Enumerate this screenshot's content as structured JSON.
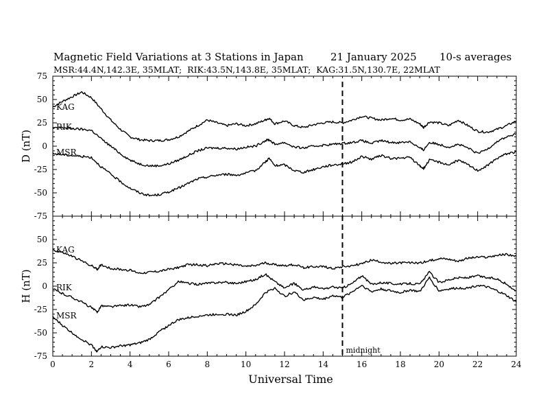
{
  "header": {
    "title": "Magnetic Field Variations at 3 Stations in Japan",
    "date": "21 January 2025",
    "averaging": "10-s averages",
    "stations_line": "MSR:44.4N,142.3E, 35MLAT;  RIK:43.5N,143.8E, 35MLAT;  KAG:31.5N,130.7E, 22MLAT"
  },
  "chart_data": [
    {
      "type": "line",
      "panel": "top",
      "ylabel": "D (nT)",
      "ylim": [
        -75,
        75
      ],
      "yticks": [
        75,
        50,
        25,
        0,
        -25,
        -50,
        -75
      ],
      "xlim": [
        0,
        24
      ],
      "grid": false,
      "series": [
        {
          "name": "KAG",
          "x": [
            0,
            0.5,
            1,
            1.5,
            2,
            2.5,
            3,
            3.5,
            4,
            4.5,
            5,
            5.5,
            6,
            6.5,
            7,
            7.5,
            8,
            8.5,
            9,
            9.5,
            10,
            10.5,
            11,
            11.2,
            11.5,
            12,
            12.5,
            13,
            13.5,
            14,
            14.5,
            15,
            15.5,
            16,
            16.5,
            17,
            17.5,
            18,
            18.5,
            19,
            19.2,
            19.5,
            20,
            20.5,
            21,
            21.5,
            22,
            22.5,
            23,
            23.5,
            24
          ],
          "y": [
            42,
            48,
            53,
            58,
            52,
            40,
            28,
            18,
            10,
            7,
            6,
            6,
            7,
            10,
            16,
            22,
            28,
            25,
            22,
            24,
            22,
            24,
            28,
            30,
            24,
            27,
            22,
            20,
            23,
            25,
            26,
            25,
            28,
            32,
            30,
            28,
            30,
            28,
            29,
            24,
            20,
            26,
            25,
            22,
            28,
            22,
            16,
            15,
            18,
            22,
            27
          ]
        },
        {
          "name": "RIK",
          "x": [
            0,
            0.5,
            1,
            1.5,
            2,
            2.5,
            3,
            3.5,
            4,
            4.5,
            5,
            5.5,
            6,
            6.5,
            7,
            7.5,
            8,
            8.5,
            9,
            9.5,
            10,
            10.5,
            11,
            11.2,
            11.5,
            12,
            12.5,
            13,
            13.5,
            14,
            14.5,
            15,
            15.5,
            16,
            16.5,
            17,
            17.5,
            18,
            18.5,
            19,
            19.2,
            19.5,
            20,
            20.5,
            21,
            21.5,
            22,
            22.5,
            23,
            23.5,
            24
          ],
          "y": [
            19,
            20,
            19,
            18,
            17,
            8,
            0,
            -8,
            -15,
            -19,
            -21,
            -21,
            -19,
            -15,
            -10,
            -5,
            -2,
            -2,
            -2,
            -3,
            -1,
            0,
            6,
            7,
            2,
            4,
            -1,
            -2,
            0,
            1,
            2,
            3,
            4,
            6,
            3,
            6,
            4,
            4,
            5,
            -2,
            -4,
            4,
            2,
            -1,
            2,
            -2,
            -8,
            -3,
            5,
            10,
            13
          ]
        },
        {
          "name": "MSR",
          "x": [
            0,
            0.5,
            1,
            1.5,
            2,
            2.5,
            3,
            3.5,
            4,
            4.5,
            5,
            5.5,
            6,
            6.5,
            7,
            7.5,
            8,
            8.5,
            9,
            9.5,
            10,
            10.5,
            11,
            11.2,
            11.5,
            12,
            12.5,
            13,
            13.5,
            14,
            14.5,
            15,
            15.5,
            16,
            16.5,
            17,
            17.5,
            18,
            18.5,
            19,
            19.2,
            19.5,
            20,
            20.5,
            21,
            21.5,
            22,
            22.5,
            23,
            23.5,
            24
          ],
          "y": [
            -8,
            -9,
            -10,
            -11,
            -12,
            -22,
            -30,
            -38,
            -45,
            -50,
            -53,
            -52,
            -49,
            -45,
            -40,
            -35,
            -33,
            -31,
            -30,
            -31,
            -29,
            -26,
            -17,
            -13,
            -21,
            -20,
            -26,
            -28,
            -25,
            -22,
            -20,
            -19,
            -17,
            -11,
            -14,
            -10,
            -13,
            -13,
            -12,
            -21,
            -24,
            -15,
            -17,
            -20,
            -15,
            -20,
            -26,
            -21,
            -13,
            -8,
            -6
          ]
        }
      ],
      "annotation": ""
    },
    {
      "type": "line",
      "panel": "bottom",
      "ylabel": "H (nT)",
      "ylim": [
        -75,
        75
      ],
      "yticks": [
        50,
        25,
        0,
        -25,
        -50,
        -75
      ],
      "xlim": [
        0,
        24
      ],
      "xticks": [
        0,
        2,
        4,
        6,
        8,
        10,
        12,
        14,
        16,
        18,
        20,
        22,
        24
      ],
      "xlabel": "Universal Time",
      "grid": false,
      "series": [
        {
          "name": "KAG",
          "x": [
            0,
            0.5,
            1,
            1.5,
            2,
            2.3,
            2.5,
            3,
            3.5,
            4,
            4.5,
            5,
            5.5,
            6,
            6.5,
            7,
            7.5,
            8,
            8.5,
            9,
            9.5,
            10,
            10.5,
            11,
            11.5,
            12,
            12.5,
            13,
            13.5,
            14,
            14.5,
            15,
            15.5,
            16,
            16.5,
            17,
            17.5,
            18,
            18.5,
            19,
            19.5,
            20,
            20.5,
            21,
            21.5,
            22,
            22.5,
            23,
            23.5,
            24
          ],
          "y": [
            39,
            36,
            32,
            27,
            22,
            18,
            23,
            19,
            18,
            17,
            14,
            15,
            16,
            18,
            20,
            23,
            23,
            22,
            24,
            24,
            23,
            21,
            22,
            25,
            23,
            22,
            23,
            20,
            21,
            21,
            19,
            21,
            22,
            24,
            28,
            26,
            24,
            25,
            25,
            25,
            27,
            30,
            29,
            27,
            30,
            31,
            31,
            33,
            34,
            32
          ]
        },
        {
          "name": "RIK",
          "x": [
            0,
            0.5,
            1,
            1.5,
            2,
            2.3,
            2.5,
            3,
            3.5,
            4,
            4.5,
            5,
            5.5,
            6,
            6.5,
            7,
            7.5,
            8,
            8.5,
            9,
            9.5,
            10,
            10.5,
            11,
            11.5,
            12,
            12.5,
            13,
            13.5,
            14,
            14.5,
            15,
            15.5,
            16,
            16.5,
            17,
            17.5,
            18,
            18.5,
            19,
            19.5,
            20,
            20.5,
            21,
            21.5,
            22,
            22.5,
            23,
            23.5,
            24
          ],
          "y": [
            -3,
            -8,
            -12,
            -17,
            -23,
            -28,
            -21,
            -22,
            -21,
            -20,
            -22,
            -20,
            -12,
            -4,
            5,
            3,
            2,
            3,
            4,
            4,
            3,
            5,
            7,
            13,
            5,
            -2,
            3,
            -4,
            -1,
            -3,
            -1,
            -2,
            3,
            11,
            2,
            4,
            3,
            2,
            3,
            2,
            15,
            4,
            7,
            9,
            9,
            11,
            9,
            8,
            2,
            -5
          ]
        },
        {
          "name": "MSR",
          "x": [
            0,
            0.5,
            1,
            1.5,
            2,
            2.3,
            2.5,
            3,
            3.5,
            4,
            4.5,
            5,
            5.5,
            6,
            6.5,
            7,
            7.5,
            8,
            8.5,
            9,
            9.5,
            10,
            10.5,
            11,
            11.5,
            12,
            12.5,
            13,
            13.5,
            14,
            14.5,
            15,
            15.5,
            16,
            16.5,
            17,
            17.5,
            18,
            18.5,
            19,
            19.5,
            20,
            20.5,
            21,
            21.5,
            22,
            22.5,
            23,
            23.5,
            24
          ],
          "y": [
            -33,
            -42,
            -50,
            -57,
            -63,
            -70,
            -65,
            -66,
            -64,
            -63,
            -61,
            -57,
            -49,
            -42,
            -36,
            -34,
            -32,
            -31,
            -30,
            -30,
            -31,
            -27,
            -20,
            -7,
            -2,
            -11,
            -6,
            -15,
            -12,
            -14,
            -10,
            -12,
            -6,
            1,
            -6,
            -3,
            -5,
            -7,
            -4,
            -6,
            9,
            -5,
            -3,
            -2,
            -2,
            1,
            -1,
            -5,
            -10,
            -17
          ]
        }
      ],
      "annotation": "midnight"
    }
  ],
  "markers": {
    "midnight_ut": 15,
    "midnight_label": "midnight"
  },
  "colors": {
    "ink": "#000000",
    "background": "#ffffff"
  }
}
